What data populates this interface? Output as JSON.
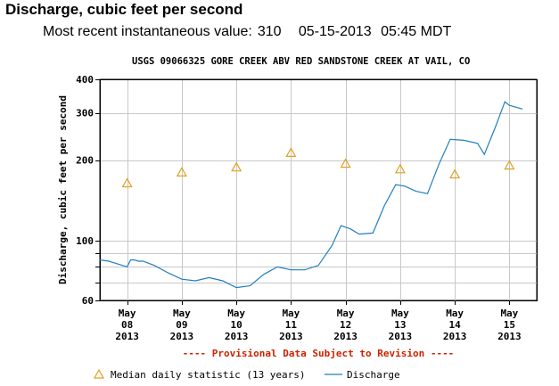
{
  "header": {
    "title": "Discharge, cubic feet per second",
    "recent_label": "Most recent instantaneous value:",
    "recent_value": "310",
    "recent_date": "05-15-2013",
    "recent_time": "05:45 MDT"
  },
  "chart_data": {
    "type": "line",
    "title": "USGS 09066325 GORE CREEK ABV RED SANDSTONE CREEK AT VAIL, CO",
    "ylabel": "Discharge, cubic feet per second",
    "xlabel": "",
    "yscale": "log",
    "ylim": [
      60,
      400
    ],
    "xlim": [
      "2013-05-07T12:00",
      "2013-05-15T12:00"
    ],
    "y_ticks": [
      60,
      100,
      200,
      300,
      400
    ],
    "y_minor_ticks": [
      70,
      80,
      90
    ],
    "x_ticks": [
      {
        "date": "2013-05-08",
        "label": [
          "May",
          "08",
          "2013"
        ]
      },
      {
        "date": "2013-05-09",
        "label": [
          "May",
          "09",
          "2013"
        ]
      },
      {
        "date": "2013-05-10",
        "label": [
          "May",
          "10",
          "2013"
        ]
      },
      {
        "date": "2013-05-11",
        "label": [
          "May",
          "11",
          "2013"
        ]
      },
      {
        "date": "2013-05-12",
        "label": [
          "May",
          "12",
          "2013"
        ]
      },
      {
        "date": "2013-05-13",
        "label": [
          "May",
          "13",
          "2013"
        ]
      },
      {
        "date": "2013-05-14",
        "label": [
          "May",
          "14",
          "2013"
        ]
      },
      {
        "date": "2013-05-15",
        "label": [
          "May",
          "15",
          "2013"
        ]
      }
    ],
    "grid": true,
    "provisional_note": "---- Provisional Data Subject to Revision ----",
    "series": [
      {
        "name": "Discharge",
        "kind": "line",
        "color": "#1f7fbf",
        "x": [
          "2013-05-07T12:00",
          "2013-05-07T16:00",
          "2013-05-07T20:00",
          "2013-05-08T00:00",
          "2013-05-08T01:30",
          "2013-05-08T03:00",
          "2013-05-08T05:00",
          "2013-05-08T07:00",
          "2013-05-08T12:00",
          "2013-05-08T18:00",
          "2013-05-09T00:00",
          "2013-05-09T06:00",
          "2013-05-09T12:00",
          "2013-05-09T18:00",
          "2013-05-10T00:00",
          "2013-05-10T06:00",
          "2013-05-10T12:00",
          "2013-05-10T18:00",
          "2013-05-11T00:00",
          "2013-05-11T06:00",
          "2013-05-11T12:00",
          "2013-05-11T18:00",
          "2013-05-11T22:00",
          "2013-05-12T02:00",
          "2013-05-12T06:00",
          "2013-05-12T12:00",
          "2013-05-12T17:00",
          "2013-05-12T22:00",
          "2013-05-13T02:00",
          "2013-05-13T07:00",
          "2013-05-13T12:00",
          "2013-05-13T17:00",
          "2013-05-13T22:00",
          "2013-05-14T04:00",
          "2013-05-14T10:00",
          "2013-05-14T13:00",
          "2013-05-14T18:00",
          "2013-05-14T22:00",
          "2013-05-15T00:00",
          "2013-05-15T05:45"
        ],
        "values": [
          85,
          84,
          82,
          80,
          85,
          85,
          84,
          84,
          81,
          76,
          72,
          71,
          73,
          71,
          67,
          68,
          75,
          80,
          78,
          78,
          81,
          96,
          114,
          111,
          106,
          107,
          135,
          162,
          160,
          153,
          150,
          193,
          239,
          237,
          231,
          210,
          268,
          330,
          320,
          310
        ]
      },
      {
        "name": "Median daily statistic (13 years)",
        "kind": "marker",
        "color": "#e0a020",
        "x": [
          "2013-05-08T00:00",
          "2013-05-09T00:00",
          "2013-05-10T00:00",
          "2013-05-11T00:00",
          "2013-05-12T00:00",
          "2013-05-13T00:00",
          "2013-05-14T00:00",
          "2013-05-15T00:00"
        ],
        "values": [
          164,
          180,
          188,
          213,
          194,
          185,
          177,
          191
        ]
      }
    ],
    "legend": [
      {
        "label": "Median daily statistic (13 years)"
      },
      {
        "label": "Discharge"
      }
    ]
  }
}
